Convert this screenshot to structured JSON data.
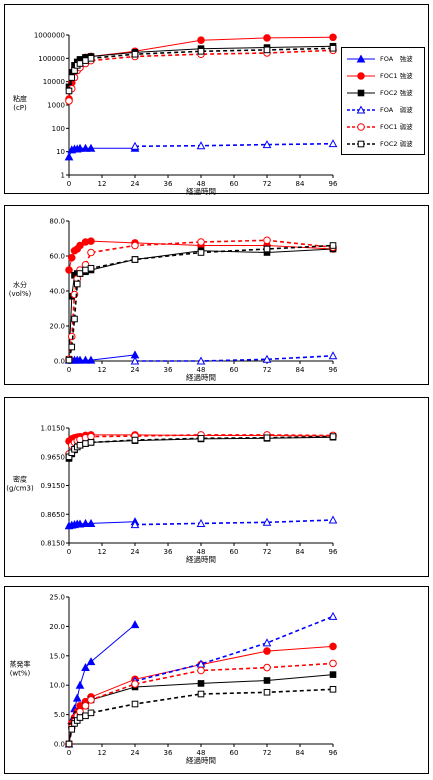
{
  "legend": [
    {
      "label": "FOA　強波",
      "color": "#0000ff",
      "marker": "triangle",
      "filled": true,
      "dashed": false
    },
    {
      "label": "FOC1 強波",
      "color": "#ff0000",
      "marker": "circle",
      "filled": true,
      "dashed": false
    },
    {
      "label": "FOC2 強波",
      "color": "#000000",
      "marker": "square",
      "filled": true,
      "dashed": false
    },
    {
      "label": "FOA　弱波",
      "color": "#0000ff",
      "marker": "triangle",
      "filled": false,
      "dashed": true
    },
    {
      "label": "FOC1 弱波",
      "color": "#ff0000",
      "marker": "circle",
      "filled": false,
      "dashed": true
    },
    {
      "label": "FOC2 弱波",
      "color": "#000000",
      "marker": "square",
      "filled": false,
      "dashed": true
    }
  ],
  "chart_data": [
    {
      "type": "line",
      "xlabel": "経過時間",
      "ylabel": [
        "粘度",
        "(cP)"
      ],
      "xticks": [
        0,
        12,
        24,
        36,
        48,
        60,
        72,
        84,
        96
      ],
      "xlim": [
        0,
        96
      ],
      "ylog": true,
      "ylim": [
        1,
        1000000
      ],
      "yticks": [
        1,
        10,
        100,
        1000,
        10000,
        100000,
        1000000
      ],
      "ytick_labels": [
        "1",
        "10",
        "100",
        "1000",
        "10000",
        "100000",
        "1000000"
      ],
      "series": [
        {
          "x": [
            0,
            1,
            2,
            3,
            4,
            6,
            8,
            24,
            48,
            72,
            96
          ],
          "y": [
            6,
            12,
            13,
            13,
            14,
            14,
            14,
            14,
            null,
            null,
            null
          ]
        },
        {
          "x": [
            0,
            1,
            2,
            3,
            4,
            6,
            8,
            24,
            48,
            72,
            96
          ],
          "y": [
            1800,
            9000,
            30000,
            60000,
            80000,
            110000,
            120000,
            200000,
            600000,
            750000,
            800000
          ]
        },
        {
          "x": [
            0,
            1,
            2,
            3,
            4,
            6,
            8,
            24,
            48,
            72,
            96
          ],
          "y": [
            6000,
            25000,
            50000,
            70000,
            90000,
            110000,
            120000,
            180000,
            260000,
            290000,
            330000
          ]
        },
        {
          "x": [
            0,
            1,
            2,
            3,
            4,
            6,
            8,
            24,
            48,
            72,
            96
          ],
          "y": [
            null,
            null,
            null,
            null,
            null,
            null,
            null,
            17,
            18,
            20,
            22
          ]
        },
        {
          "x": [
            0,
            1,
            2,
            3,
            4,
            6,
            8,
            24,
            48,
            72,
            96
          ],
          "y": [
            1500,
            5000,
            15000,
            30000,
            40000,
            60000,
            80000,
            120000,
            150000,
            170000,
            220000
          ]
        },
        {
          "x": [
            0,
            1,
            2,
            3,
            4,
            6,
            8,
            24,
            48,
            72,
            96
          ],
          "y": [
            4000,
            15000,
            30000,
            50000,
            60000,
            80000,
            100000,
            150000,
            200000,
            230000,
            270000
          ]
        }
      ]
    },
    {
      "type": "line",
      "xlabel": "経過時間",
      "ylabel": [
        "水分",
        "(vol%)"
      ],
      "xticks": [
        0,
        12,
        24,
        36,
        48,
        60,
        72,
        84,
        96
      ],
      "xlim": [
        0,
        96
      ],
      "ylog": false,
      "ylim": [
        0,
        80
      ],
      "yticks": [
        0,
        20,
        40,
        60,
        80
      ],
      "ytick_labels": [
        "0.0",
        "20.0",
        "40.0",
        "60.0",
        "80.0"
      ],
      "series": [
        {
          "x": [
            0,
            1,
            2,
            3,
            4,
            6,
            8,
            24,
            48,
            72,
            96
          ],
          "y": [
            0.5,
            0.5,
            0.5,
            0.5,
            0.5,
            0.5,
            0.5,
            3.5,
            null,
            null,
            null
          ]
        },
        {
          "x": [
            0,
            1,
            2,
            3,
            4,
            6,
            8,
            24,
            48,
            72,
            96
          ],
          "y": [
            52,
            59,
            63,
            64,
            66,
            68,
            68.5,
            67.5,
            66,
            66,
            64
          ]
        },
        {
          "x": [
            0,
            1,
            2,
            3,
            4,
            6,
            8,
            24,
            48,
            72,
            96
          ],
          "y": [
            1,
            37,
            49,
            50,
            50,
            51,
            52,
            58,
            63,
            62,
            64
          ]
        },
        {
          "x": [
            0,
            1,
            2,
            3,
            4,
            6,
            8,
            24,
            48,
            72,
            96
          ],
          "y": [
            null,
            null,
            null,
            null,
            null,
            null,
            null,
            0,
            0,
            1,
            3
          ]
        },
        {
          "x": [
            0,
            1,
            2,
            3,
            4,
            6,
            8,
            24,
            48,
            72,
            96
          ],
          "y": [
            1,
            14,
            38,
            47,
            52,
            55,
            62,
            66,
            68,
            69,
            65
          ]
        },
        {
          "x": [
            0,
            1,
            2,
            3,
            4,
            6,
            8,
            24,
            48,
            72,
            96
          ],
          "y": [
            0.5,
            8,
            24,
            44,
            50,
            52,
            53,
            58,
            62,
            64,
            66
          ]
        }
      ]
    },
    {
      "type": "line",
      "xlabel": "経過時間",
      "ylabel": [
        "密度",
        "(g/cm3)"
      ],
      "xticks": [
        0,
        12,
        24,
        36,
        48,
        60,
        72,
        84,
        96
      ],
      "xlim": [
        0,
        96
      ],
      "ylog": false,
      "ylim": [
        0.815,
        1.015
      ],
      "yticks": [
        0.815,
        0.865,
        0.915,
        0.965,
        1.015
      ],
      "ytick_labels": [
        "0.8150",
        "0.8650",
        "0.9150",
        "0.9650",
        "1.0150"
      ],
      "series": [
        {
          "x": [
            0,
            1,
            2,
            3,
            4,
            6,
            8,
            24,
            48,
            72,
            96
          ],
          "y": [
            0.845,
            0.846,
            0.847,
            0.848,
            0.848,
            0.849,
            0.849,
            0.852,
            null,
            null,
            null
          ]
        },
        {
          "x": [
            0,
            1,
            2,
            3,
            4,
            6,
            8,
            24,
            48,
            72,
            96
          ],
          "y": [
            0.992,
            0.996,
            0.998,
            0.999,
            1.0,
            1.002,
            1.003,
            1.003,
            1.002,
            1.002,
            1.001
          ]
        },
        {
          "x": [
            0,
            1,
            2,
            3,
            4,
            6,
            8,
            24,
            48,
            72,
            96
          ],
          "y": [
            0.962,
            0.97,
            0.977,
            0.983,
            0.985,
            0.988,
            0.99,
            0.993,
            0.996,
            0.997,
            0.999
          ]
        },
        {
          "x": [
            0,
            1,
            2,
            3,
            4,
            6,
            8,
            24,
            48,
            72,
            96
          ],
          "y": [
            null,
            null,
            null,
            null,
            null,
            null,
            null,
            0.847,
            0.849,
            0.851,
            0.855
          ]
        },
        {
          "x": [
            0,
            1,
            2,
            3,
            4,
            6,
            8,
            24,
            48,
            72,
            96
          ],
          "y": [
            0.97,
            0.985,
            0.99,
            0.993,
            0.995,
            0.998,
            1.0,
            1.001,
            1.003,
            1.003,
            1.002
          ]
        },
        {
          "x": [
            0,
            1,
            2,
            3,
            4,
            6,
            8,
            24,
            48,
            72,
            96
          ],
          "y": [
            0.965,
            0.972,
            0.978,
            0.982,
            0.985,
            0.988,
            0.99,
            0.994,
            0.997,
            0.998,
            1.0
          ]
        }
      ]
    },
    {
      "type": "line",
      "xlabel": "経過時間",
      "ylabel": [
        "蒸発率",
        "(wt%)"
      ],
      "xticks": [
        0,
        12,
        24,
        36,
        48,
        60,
        72,
        84,
        96
      ],
      "xlim": [
        0,
        96
      ],
      "ylog": false,
      "ylim": [
        0,
        25
      ],
      "yticks": [
        0,
        5,
        10,
        15,
        20,
        25
      ],
      "ytick_labels": [
        "0.0",
        "5.0",
        "10.0",
        "15.0",
        "20.0",
        "25.0"
      ],
      "series": [
        {
          "x": [
            0,
            1,
            2,
            3,
            4,
            6,
            8,
            24,
            48,
            72,
            96
          ],
          "y": [
            0,
            4,
            6,
            7.8,
            10,
            13,
            14,
            20.3,
            null,
            null,
            null
          ]
        },
        {
          "x": [
            0,
            1,
            2,
            3,
            4,
            6,
            8,
            24,
            48,
            72,
            96
          ],
          "y": [
            0,
            3.5,
            4.5,
            5.5,
            6.5,
            7.2,
            8,
            11,
            13.5,
            15.8,
            16.6
          ]
        },
        {
          "x": [
            0,
            1,
            2,
            3,
            4,
            6,
            8,
            24,
            48,
            72,
            96
          ],
          "y": [
            0,
            3,
            4,
            5,
            5.5,
            6.5,
            7.5,
            9.7,
            10.3,
            10.8,
            11.8
          ]
        },
        {
          "x": [
            0,
            1,
            2,
            3,
            4,
            6,
            8,
            24,
            48,
            72,
            96
          ],
          "y": [
            null,
            null,
            null,
            null,
            null,
            null,
            null,
            10.7,
            13.6,
            17.2,
            21.7
          ]
        },
        {
          "x": [
            0,
            1,
            2,
            3,
            4,
            6,
            8,
            24,
            48,
            72,
            96
          ],
          "y": [
            0,
            2.8,
            3.8,
            4.8,
            5.5,
            6.5,
            7.5,
            10.2,
            12.5,
            13,
            13.7
          ]
        },
        {
          "x": [
            0,
            1,
            2,
            3,
            4,
            6,
            8,
            24,
            48,
            72,
            96
          ],
          "y": [
            0,
            2.5,
            3.5,
            4,
            4.5,
            4.8,
            5.3,
            6.8,
            8.5,
            8.8,
            9.3
          ]
        }
      ]
    }
  ]
}
